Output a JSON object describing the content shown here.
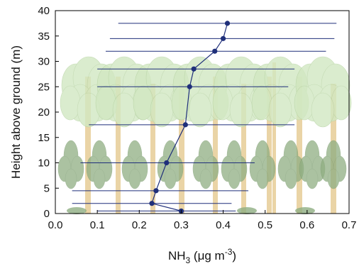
{
  "chart_data": {
    "type": "scatter",
    "title": "",
    "xlabel": {
      "base": "NH",
      "sub": "3",
      "pre_unit": " (μg m",
      "sup": "-3",
      "post_unit": ")"
    },
    "ylabel": "Height above ground (m)",
    "xlim": [
      0.0,
      0.7
    ],
    "ylim": [
      0,
      40
    ],
    "xticks": [
      "0.0",
      "0.1",
      "0.2",
      "0.3",
      "0.4",
      "0.5",
      "0.6",
      "0.7"
    ],
    "yticks": [
      "0",
      "5",
      "10",
      "15",
      "20",
      "25",
      "30",
      "35",
      "40"
    ],
    "grid": false,
    "legend": "none",
    "series": [
      {
        "marker": "circle",
        "line": true,
        "color": "#1f2f7a",
        "points": [
          {
            "x": 0.3,
            "y": 0.5,
            "xmin": 0.1,
            "xmax": 0.43
          },
          {
            "x": 0.23,
            "y": 2.0,
            "xmin": 0.04,
            "xmax": 0.42
          },
          {
            "x": 0.24,
            "y": 4.5,
            "xmin": 0.04,
            "xmax": 0.46
          },
          {
            "x": 0.265,
            "y": 10.0,
            "xmin": 0.06,
            "xmax": 0.475
          },
          {
            "x": 0.31,
            "y": 17.5,
            "xmin": 0.08,
            "xmax": 0.57
          },
          {
            "x": 0.32,
            "y": 25.0,
            "xmin": 0.1,
            "xmax": 0.555
          },
          {
            "x": 0.33,
            "y": 28.5,
            "xmin": 0.1,
            "xmax": 0.57
          },
          {
            "x": 0.38,
            "y": 32.0,
            "xmin": 0.12,
            "xmax": 0.645
          },
          {
            "x": 0.4,
            "y": 34.5,
            "xmin": 0.13,
            "xmax": 0.665
          },
          {
            "x": 0.41,
            "y": 37.5,
            "xmin": 0.15,
            "xmax": 0.67
          }
        ]
      }
    ],
    "colors": {
      "marker": "#1f2f7a",
      "trunk": "#e8cf9c",
      "foliage_light": "#d2e8c2",
      "foliage_mid": "#b7d3a4",
      "foliage_dark": "#8fae82"
    }
  }
}
